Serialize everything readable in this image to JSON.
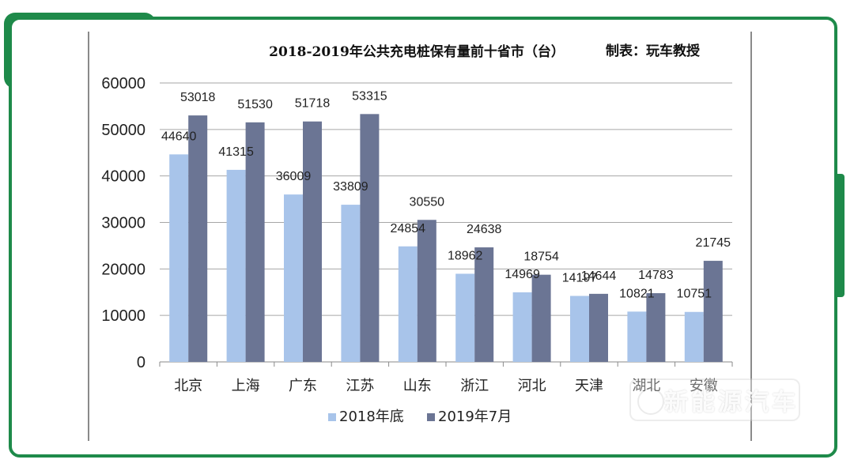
{
  "chart_data": {
    "type": "bar",
    "title": "2018-2019年公共充电桩保有量前十省市（台）",
    "credit": "制表：玩车教授",
    "categories": [
      "北京",
      "上海",
      "广东",
      "江苏",
      "山东",
      "浙江",
      "河北",
      "天津",
      "湖北",
      "安徽"
    ],
    "series": [
      {
        "name": "2018年底",
        "values": [
          44640,
          41315,
          36009,
          33809,
          24854,
          18962,
          14969,
          14197,
          10821,
          10751
        ]
      },
      {
        "name": "2019年7月",
        "values": [
          53018,
          51530,
          51718,
          53315,
          30550,
          24638,
          18754,
          14644,
          14783,
          21745
        ]
      }
    ],
    "ylim": [
      0,
      60000
    ],
    "yticks": [
      "0",
      "10000",
      "20000",
      "30000",
      "40000",
      "50000",
      "60000"
    ],
    "grid": true,
    "legend_position": "bottom",
    "colors": {
      "series1": "#a8c4ea",
      "series2": "#6b7594",
      "grid": "#a6a6a6",
      "frame": "#1e8a4a"
    }
  },
  "watermark": {
    "text": "新能源汽车"
  }
}
